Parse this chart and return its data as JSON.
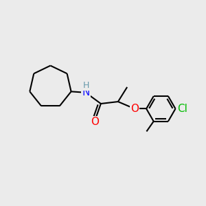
{
  "background_color": "#ebebeb",
  "bond_color": "#000000",
  "bond_width": 1.5,
  "atom_colors": {
    "N": "#1a1aff",
    "O_carbonyl": "#ff0000",
    "O_ether": "#ff0000",
    "Cl": "#00bb00",
    "H": "#6699aa",
    "C": "#000000"
  },
  "font_size_atom": 11,
  "font_size_H": 9,
  "figsize": [
    3.0,
    3.0
  ],
  "dpi": 100
}
